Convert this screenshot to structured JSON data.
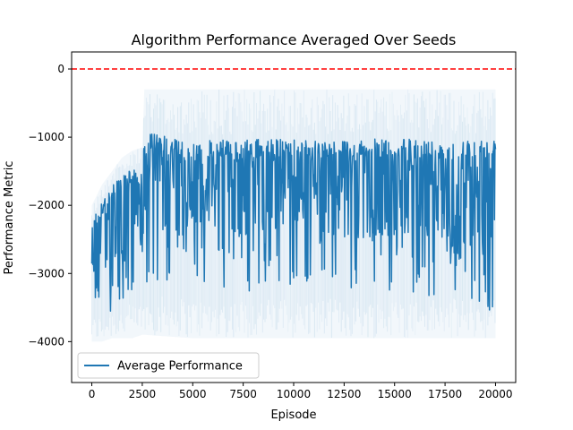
{
  "chart_data": {
    "type": "line",
    "title": "Algorithm Performance Averaged Over Seeds",
    "xlabel": "Episode",
    "ylabel": "Performance Metric",
    "xlim": [
      -1000,
      21000
    ],
    "ylim": [
      -4600,
      250
    ],
    "x_ticks": [
      0,
      2500,
      5000,
      7500,
      10000,
      12500,
      15000,
      17500,
      20000
    ],
    "y_ticks": [
      0,
      -1000,
      -2000,
      -3000,
      -4000
    ],
    "grid": false,
    "legend": {
      "placement": "lower-left",
      "entries": [
        "Average Performance"
      ]
    },
    "reference_line": {
      "y": 0,
      "style": "dashed",
      "color": "#ff0000"
    },
    "series": [
      {
        "name": "Average Performance",
        "color": "#1f77b4",
        "x": [
          0,
          500,
          1000,
          1500,
          2000,
          2500,
          2600,
          5000,
          7500,
          10000,
          12500,
          15000,
          17500,
          20000
        ],
        "upper": [
          -2250,
          -1950,
          -1700,
          -1500,
          -1480,
          -1450,
          -930,
          -1050,
          -1040,
          -1020,
          -1040,
          -1020,
          -1050,
          -1020
        ],
        "lower": [
          -3750,
          -3600,
          -3600,
          -3550,
          -3400,
          -3300,
          -3200,
          -3300,
          -3350,
          -3200,
          -3400,
          -3300,
          -3350,
          -3600
        ],
        "band_upper": [
          -2000,
          -1700,
          -1500,
          -1300,
          -1200,
          -1150,
          -300,
          -300,
          -300,
          -300,
          -300,
          -300,
          -300,
          -300
        ],
        "band_lower": [
          -4000,
          -4000,
          -3950,
          -3950,
          -3950,
          -3900,
          -3900,
          -3950,
          -3950,
          -3950,
          -3950,
          -3950,
          -3950,
          -3950
        ]
      }
    ]
  }
}
